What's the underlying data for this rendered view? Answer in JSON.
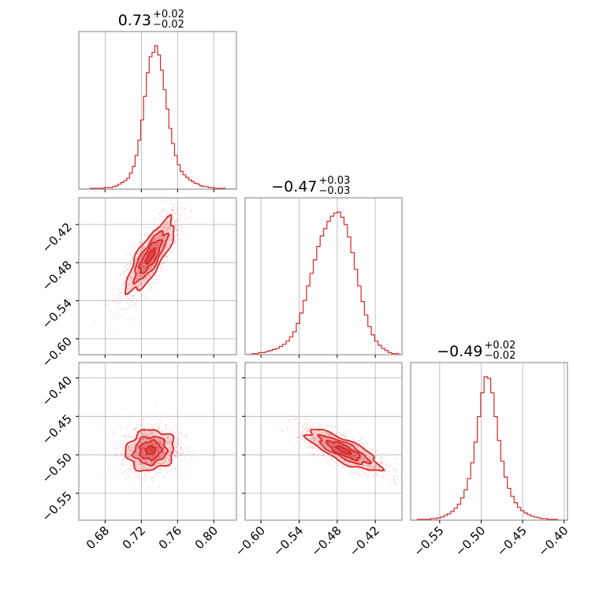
{
  "chart_data": {
    "type": "corner",
    "color": "#d62728",
    "parameters": [
      {
        "median_text": "0.73",
        "plus_text": "+0.02",
        "minus_text": "−0.02",
        "median": 0.73,
        "sigma": 0.012
      },
      {
        "median_text": "−0.47",
        "plus_text": "+0.03",
        "minus_text": "−0.03",
        "median": -0.47,
        "sigma": 0.026
      },
      {
        "median_text": "−0.49",
        "plus_text": "+0.02",
        "minus_text": "−0.02",
        "median": -0.494,
        "sigma": 0.012
      }
    ],
    "axes": {
      "x0": {
        "range": [
          0.651,
          0.825
        ],
        "ticks": [
          0.68,
          0.72,
          0.76,
          0.8
        ],
        "tick_labels": [
          "0.68",
          "0.72",
          "0.76",
          "0.80"
        ]
      },
      "x1": {
        "range": [
          -0.625,
          -0.378
        ],
        "ticks": [
          -0.6,
          -0.54,
          -0.48,
          -0.42
        ],
        "tick_labels": [
          "−0.60",
          "−0.54",
          "−0.48",
          "−0.42"
        ]
      },
      "x2": {
        "range": [
          -0.585,
          -0.396
        ],
        "ticks": [
          -0.55,
          -0.5,
          -0.45,
          -0.4
        ],
        "tick_labels": [
          "−0.55",
          "−0.50",
          "−0.45",
          "−0.40"
        ]
      },
      "y1": {
        "range": [
          -0.625,
          -0.378
        ],
        "ticks": [
          -0.6,
          -0.54,
          -0.48,
          -0.42
        ],
        "tick_labels": [
          "−0.60",
          "−0.54",
          "−0.48",
          "−0.42"
        ]
      },
      "y2": {
        "range": [
          -0.585,
          -0.38
        ],
        "ticks": [
          -0.55,
          -0.5,
          -0.45,
          -0.4
        ],
        "tick_labels": [
          "−0.55",
          "−0.50",
          "−0.45",
          "−0.40"
        ]
      }
    },
    "histograms": [
      {
        "param": 0,
        "bin_edges": [
          0.651,
          0.825
        ],
        "counts": [
          0,
          0,
          0,
          0,
          1,
          1,
          1,
          1,
          1,
          2,
          2,
          2,
          3,
          4,
          6,
          8,
          10,
          13,
          19,
          27,
          40,
          58,
          82,
          110,
          138,
          157,
          162,
          170,
          159,
          141,
          118,
          95,
          72,
          54,
          40,
          29,
          21,
          17,
          14,
          11,
          9,
          7,
          6,
          4,
          3,
          3,
          2,
          2,
          1,
          1,
          1,
          1,
          0,
          0,
          0,
          0
        ]
      },
      {
        "param": 1,
        "bin_edges": [
          -0.625,
          -0.378
        ],
        "counts": [
          0,
          0,
          1,
          1,
          2,
          2,
          3,
          4,
          5,
          6,
          8,
          10,
          13,
          17,
          22,
          30,
          40,
          52,
          66,
          78,
          91,
          104,
          114,
          121,
          128,
          133,
          136,
          137,
          132,
          125,
          113,
          98,
          82,
          66,
          51,
          38,
          27,
          19,
          13,
          9,
          6,
          4,
          2,
          1,
          1,
          0
        ]
      },
      {
        "param": 2,
        "bin_edges": [
          -0.585,
          -0.396
        ],
        "counts": [
          0,
          0,
          1,
          1,
          1,
          1,
          2,
          2,
          3,
          4,
          6,
          8,
          11,
          15,
          20,
          28,
          38,
          52,
          72,
          98,
          130,
          160,
          180,
          178,
          160,
          130,
          100,
          74,
          54,
          40,
          30,
          22,
          16,
          12,
          9,
          7,
          5,
          4,
          3,
          2,
          2,
          1,
          1,
          1,
          0,
          0,
          0
        ]
      }
    ],
    "correlations": {
      "p0_p1": 0.8,
      "p0_p2": 0.1,
      "p1_p2": -0.8
    }
  }
}
